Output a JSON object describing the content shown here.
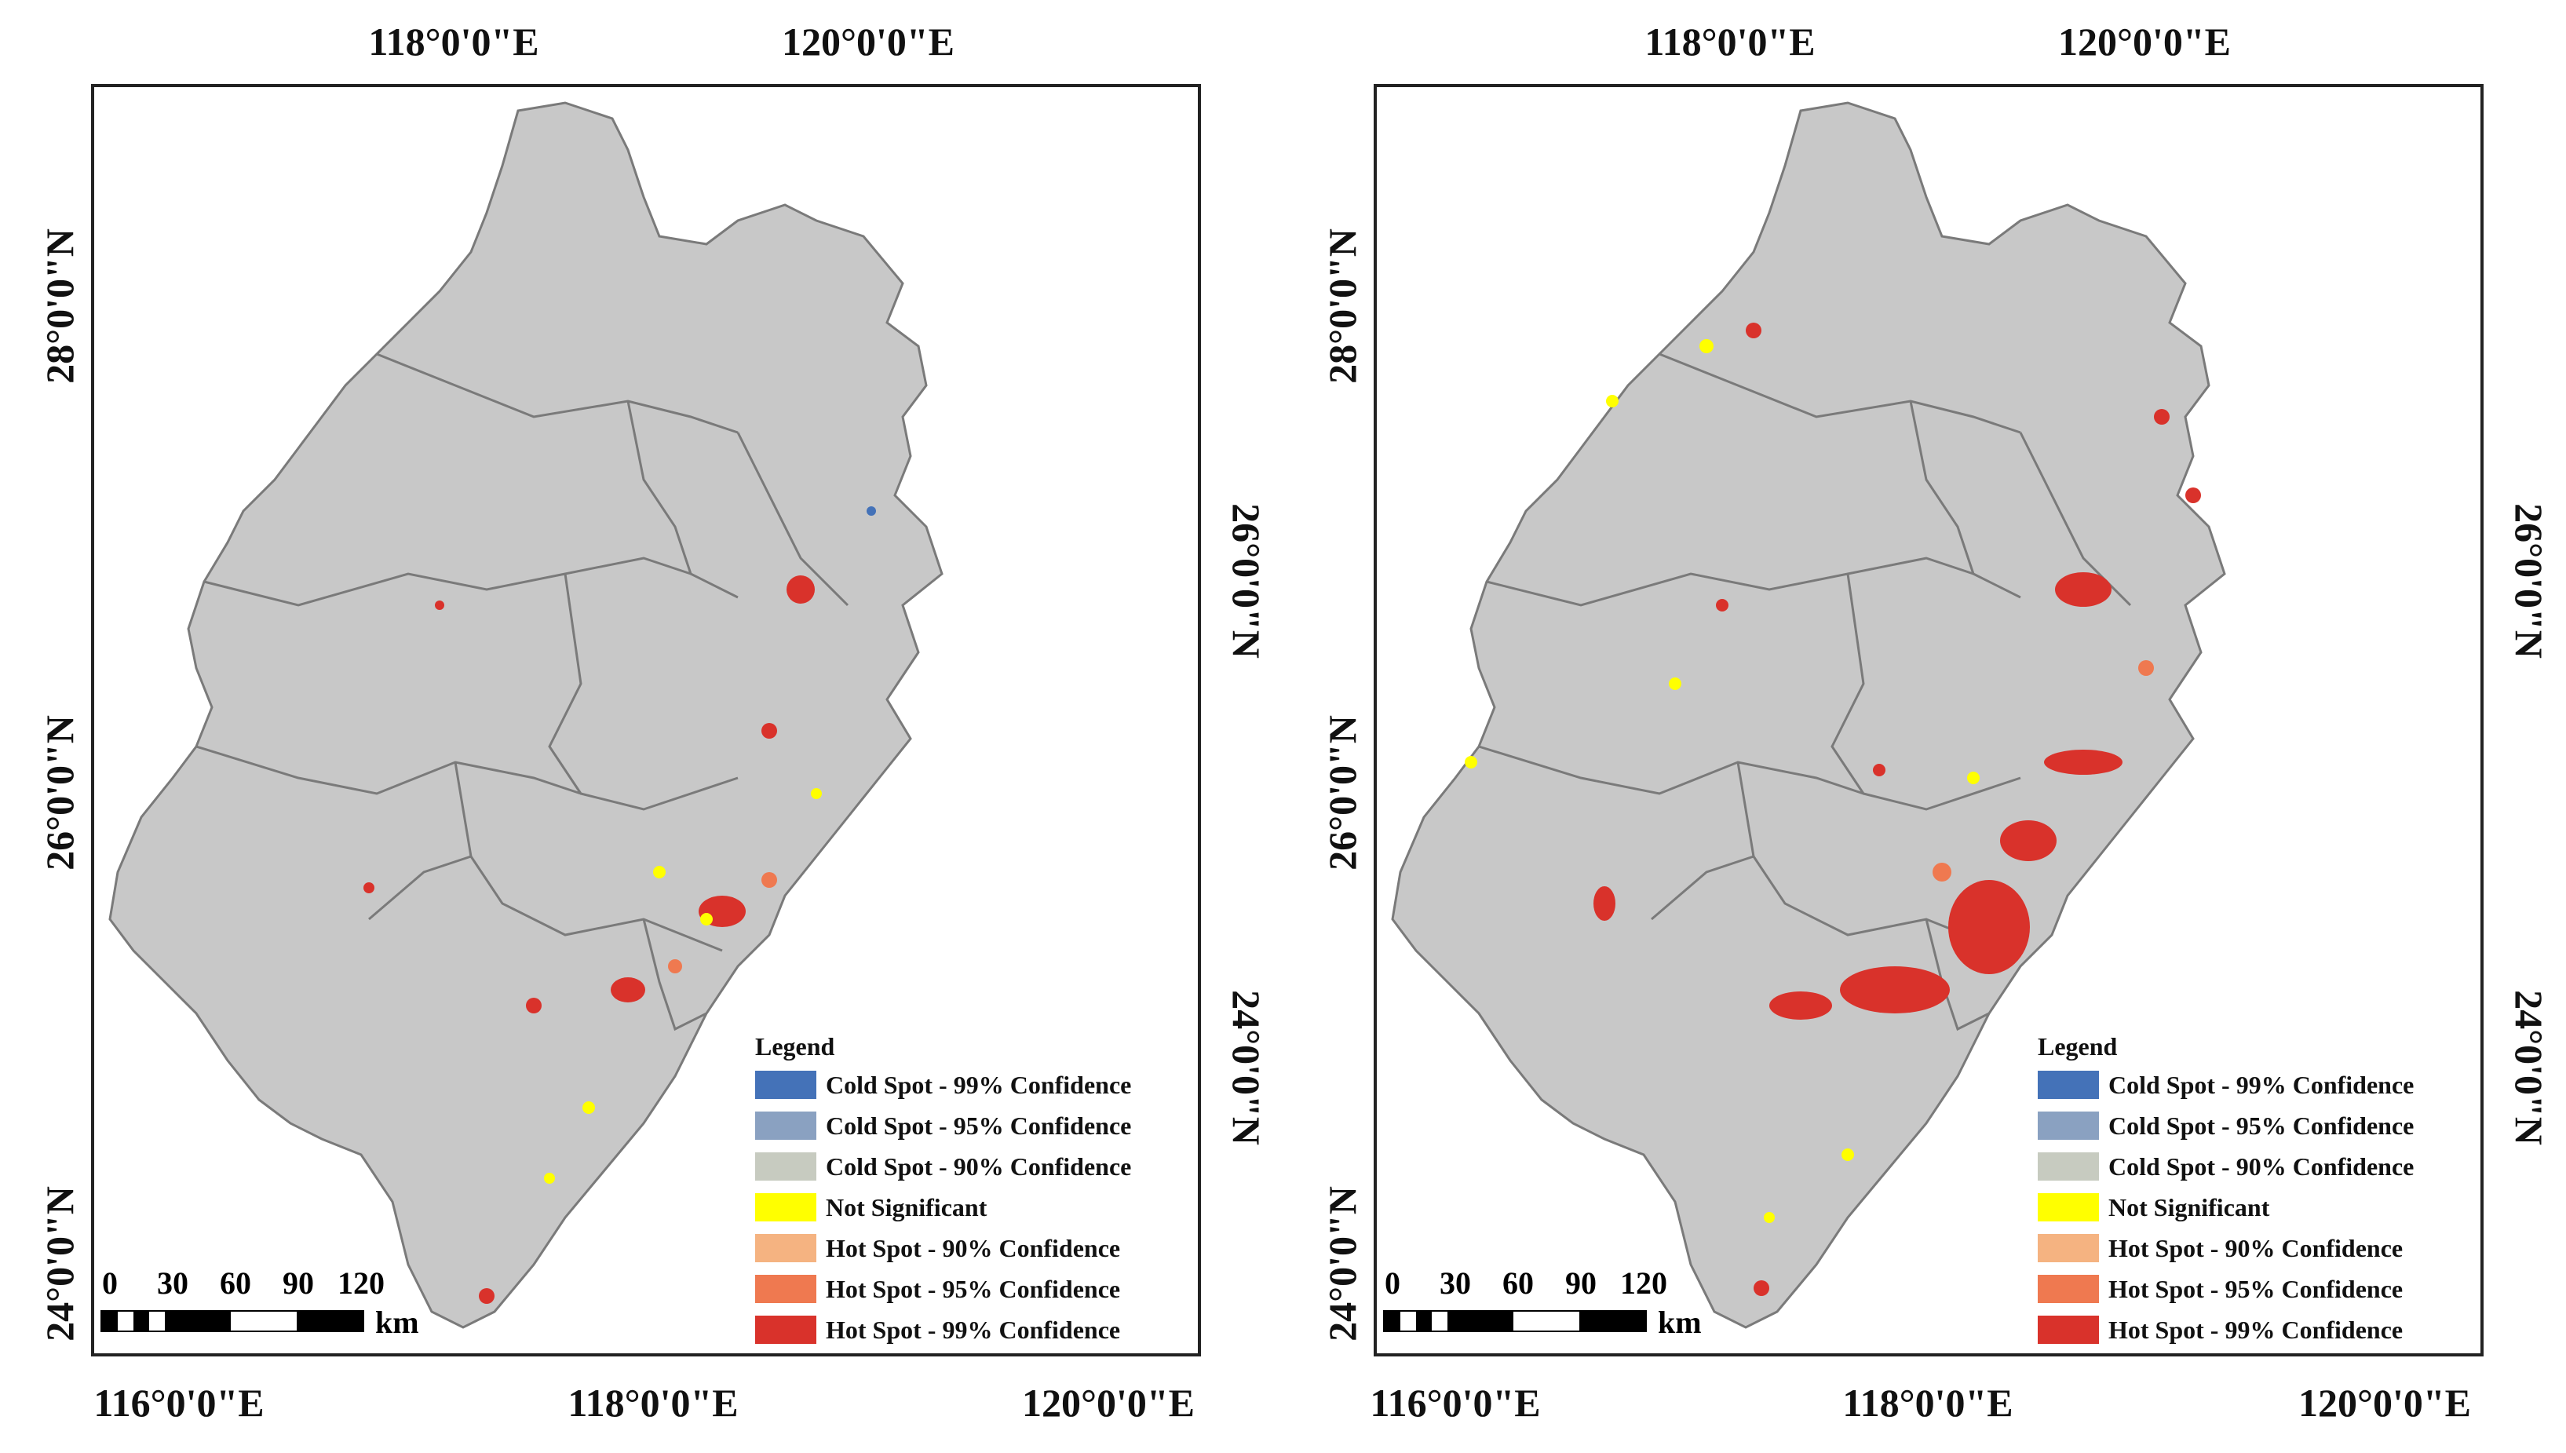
{
  "panels": [
    {
      "top_labels": [
        "118°0'0\"E",
        "120°0'0\"E"
      ],
      "bottom_labels": [
        "116°0'0\"E",
        "118°0'0\"E",
        "120°0'0\"E"
      ],
      "left_labels": [
        "28°0'0\"N",
        "26°0'0\"N",
        "24°0'0\"N"
      ],
      "right_labels": [
        "26°0'0\"N",
        "24°0'0\"N"
      ]
    },
    {
      "top_labels": [
        "118°0'0\"E",
        "120°0'0\"E"
      ],
      "bottom_labels": [
        "116°0'0\"E",
        "118°0'0\"E",
        "120°0'0\"E"
      ],
      "left_labels": [
        "28°0'0\"N",
        "26°0'0\"N",
        "24°0'0\"N"
      ],
      "right_labels": [
        "26°0'0\"N",
        "24°0'0\"N"
      ]
    }
  ],
  "legend": {
    "title": "Legend",
    "items": [
      {
        "label": "Cold Spot - 99% Confidence",
        "color": "#4472b8"
      },
      {
        "label": "Cold Spot - 95% Confidence",
        "color": "#8aa1c1"
      },
      {
        "label": "Cold Spot - 90% Confidence",
        "color": "#c7cbc0"
      },
      {
        "label": "Not Significant",
        "color": "#ffff00"
      },
      {
        "label": "Hot Spot - 90% Confidence",
        "color": "#f5b381"
      },
      {
        "label": "Hot Spot - 95% Confidence",
        "color": "#ef7950"
      },
      {
        "label": "Hot Spot - 99% Confidence",
        "color": "#d9322b"
      }
    ]
  },
  "scalebar": {
    "ticks": [
      "0",
      "30",
      "60",
      "90",
      "120"
    ],
    "unit": "km"
  },
  "colors": {
    "land": "#c8c8c8",
    "boundary": "#7a7a7a",
    "hot99": "#d9322b",
    "hot95": "#ef7950",
    "hot90": "#f5b381",
    "not_sig": "#ffff00",
    "cold99": "#4472b8",
    "cold90": "#c7cbc0"
  }
}
